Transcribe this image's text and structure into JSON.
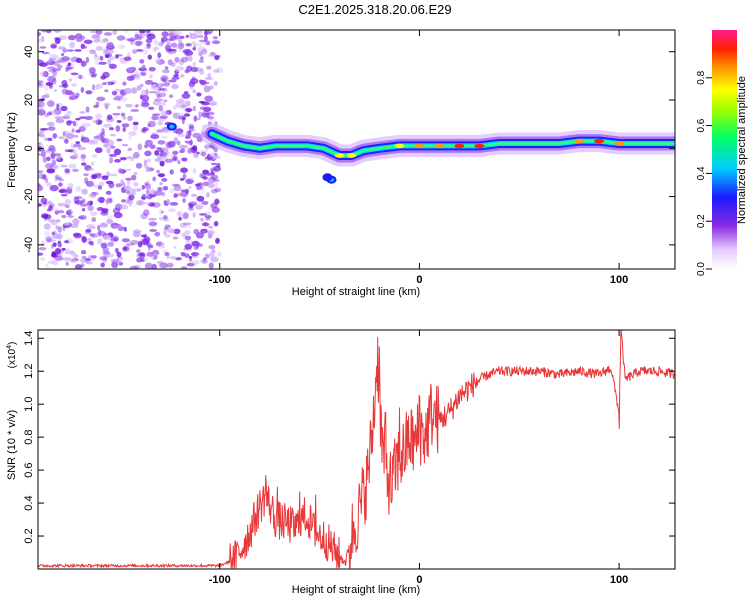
{
  "figure_title": "C2E1.2025.318.20.06.E29",
  "chart_data": [
    {
      "type": "heatmap",
      "title": "C2E1.2025.318.20.06.E29",
      "xlabel": "Height of straight line (km)",
      "ylabel": "Frequency (Hz)",
      "xlim": [
        -191,
        128
      ],
      "ylim": [
        -50,
        49
      ],
      "x_ticks": [
        -100,
        0,
        100
      ],
      "x_tick_labels": [
        "-100",
        "0",
        "100"
      ],
      "y_ticks": [
        -40,
        -20,
        0,
        20,
        40
      ],
      "y_tick_labels": [
        "-40",
        "-20",
        "0",
        "20",
        "40"
      ],
      "colorbar": {
        "label": "Normalized spectral amplitude",
        "range": [
          0.0,
          1.0
        ],
        "ticks": [
          0.0,
          0.2,
          0.4,
          0.6,
          0.8
        ],
        "tick_labels": [
          "0.0",
          "0.2",
          "0.4",
          "0.6",
          "0.8"
        ]
      },
      "noise_region_x": [
        -191,
        -100
      ],
      "ridge": [
        {
          "x": -104,
          "y": 6,
          "a": 0.6
        },
        {
          "x": -96,
          "y": 3,
          "a": 0.55
        },
        {
          "x": -88,
          "y": 1,
          "a": 0.6
        },
        {
          "x": -80,
          "y": 0,
          "a": 0.55
        },
        {
          "x": -72,
          "y": 1,
          "a": 0.6
        },
        {
          "x": -64,
          "y": 1,
          "a": 0.55
        },
        {
          "x": -56,
          "y": 1,
          "a": 0.6
        },
        {
          "x": -48,
          "y": 0,
          "a": 0.55
        },
        {
          "x": -40,
          "y": -3,
          "a": 0.75
        },
        {
          "x": -34,
          "y": -3,
          "a": 0.8
        },
        {
          "x": -28,
          "y": -1,
          "a": 0.6
        },
        {
          "x": -20,
          "y": 0,
          "a": 0.65
        },
        {
          "x": -10,
          "y": 1,
          "a": 0.75
        },
        {
          "x": 0,
          "y": 1,
          "a": 0.85
        },
        {
          "x": 10,
          "y": 1,
          "a": 0.9
        },
        {
          "x": 20,
          "y": 1,
          "a": 0.95
        },
        {
          "x": 30,
          "y": 1,
          "a": 0.95
        },
        {
          "x": 40,
          "y": 2,
          "a": 0.7
        },
        {
          "x": 50,
          "y": 2,
          "a": 0.55
        },
        {
          "x": 60,
          "y": 2,
          "a": 0.5
        },
        {
          "x": 70,
          "y": 2,
          "a": 0.55
        },
        {
          "x": 80,
          "y": 3,
          "a": 0.85
        },
        {
          "x": 90,
          "y": 3,
          "a": 0.95
        },
        {
          "x": 100,
          "y": 2,
          "a": 0.85
        },
        {
          "x": 110,
          "y": 2,
          "a": 0.6
        },
        {
          "x": 120,
          "y": 2,
          "a": 0.55
        },
        {
          "x": 128,
          "y": 2,
          "a": 0.5
        }
      ],
      "blobs": [
        {
          "x": -124,
          "y": 9,
          "a": 0.45
        },
        {
          "x": -44,
          "y": -13,
          "a": 0.45
        },
        {
          "x": -46,
          "y": -12,
          "a": 0.3
        }
      ]
    },
    {
      "type": "line",
      "xlabel": "Height of straight line (km)",
      "ylabel": "SNR (10 * v/v)",
      "y_multiplier": "(x10",
      "y_multiplier_exp": "4",
      "y_multiplier_close": ")",
      "xlim": [
        -191,
        128
      ],
      "ylim": [
        0,
        1.45
      ],
      "x_ticks": [
        -100,
        0,
        100
      ],
      "x_tick_labels": [
        "-100",
        "0",
        "100"
      ],
      "y_ticks": [
        0.2,
        0.4,
        0.6,
        0.8,
        1.0,
        1.2,
        1.4
      ],
      "y_tick_labels": [
        "0.2",
        "0.4",
        "0.6",
        "0.8",
        "1.0",
        "1.2",
        "1.4"
      ],
      "line_color": "#e8383a",
      "series": [
        {
          "name": "SNR",
          "x": [
            -191,
            -170,
            -150,
            -130,
            -110,
            -100,
            -92,
            -85,
            -80,
            -77,
            -72,
            -67,
            -62,
            -57,
            -52,
            -47,
            -42,
            -37,
            -33,
            -30,
            -26,
            -23,
            -21,
            -19,
            -17,
            -14,
            -11,
            -8,
            -5,
            -2,
            0,
            3,
            6,
            10,
            15,
            20,
            25,
            30,
            35,
            40,
            50,
            60,
            70,
            80,
            90,
            96,
            100,
            101,
            103,
            110,
            120,
            128
          ],
          "values": [
            0.02,
            0.02,
            0.02,
            0.02,
            0.02,
            0.02,
            0.06,
            0.22,
            0.38,
            0.45,
            0.3,
            0.28,
            0.25,
            0.33,
            0.22,
            0.18,
            0.1,
            0.04,
            0.25,
            0.35,
            0.55,
            0.9,
            1.3,
            0.8,
            0.6,
            0.5,
            0.65,
            0.7,
            0.8,
            0.75,
            0.85,
            0.8,
            0.95,
            0.9,
            0.95,
            1.05,
            1.1,
            1.15,
            1.18,
            1.2,
            1.2,
            1.2,
            1.18,
            1.2,
            1.18,
            1.22,
            0.95,
            1.45,
            1.15,
            1.2,
            1.2,
            1.18
          ]
        }
      ],
      "peaks": [
        {
          "x": -77,
          "y": 0.57
        },
        {
          "x": -71,
          "y": 0.5
        },
        {
          "x": -60,
          "y": 0.47
        },
        {
          "x": -52,
          "y": 0.45
        },
        {
          "x": -20,
          "y": 1.35
        },
        {
          "x": -23,
          "y": 1.05
        },
        {
          "x": -17,
          "y": 0.95
        },
        {
          "x": -10,
          "y": 0.98
        },
        {
          "x": 0,
          "y": 1.05
        },
        {
          "x": 100,
          "y": 0.85
        },
        {
          "x": 101,
          "y": 1.45
        }
      ]
    }
  ]
}
